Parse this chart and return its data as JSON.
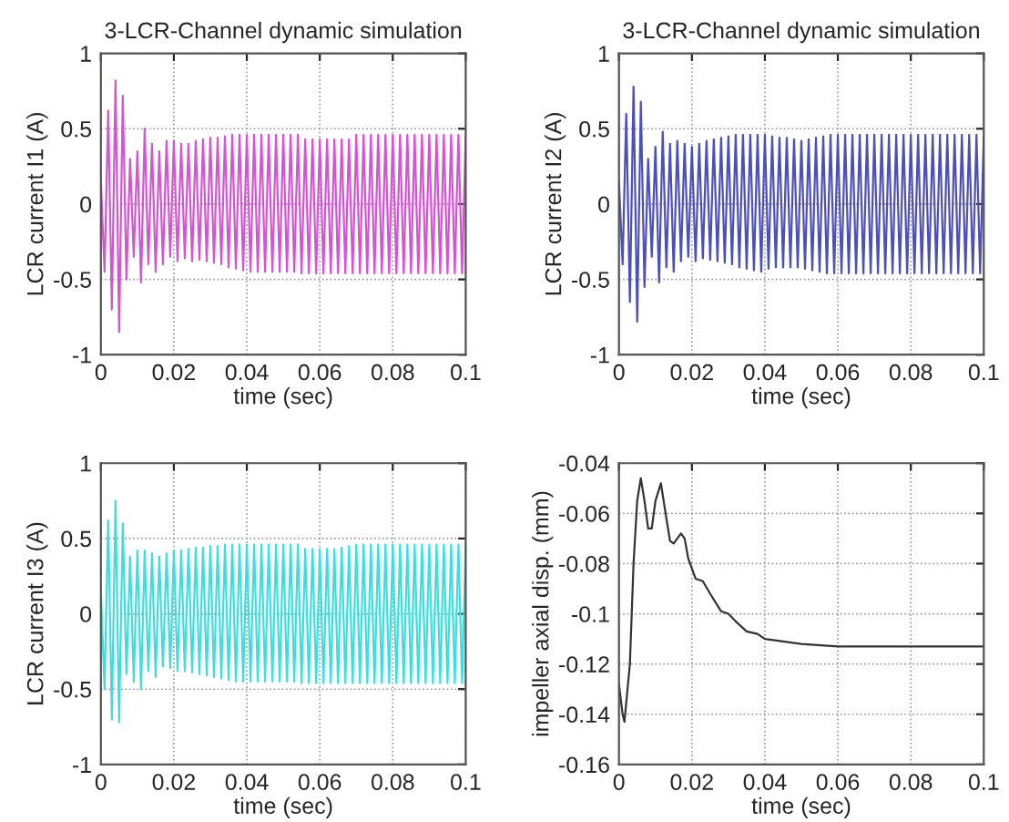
{
  "chart_data": [
    {
      "type": "line",
      "title": "3-LCR-Channel dynamic simulation",
      "xlabel": "time (sec)",
      "ylabel": "LCR current I1 (A)",
      "xlim": [
        0,
        0.1
      ],
      "ylim": [
        -1,
        1
      ],
      "xticks": [
        0,
        0.02,
        0.04,
        0.06,
        0.08,
        0.1
      ],
      "yticks": [
        -1,
        -0.5,
        0,
        0.5,
        1
      ],
      "grid": true,
      "x": [
        0,
        0.001,
        0.002,
        0.003,
        0.004,
        0.005,
        0.006,
        0.007,
        0.008,
        0.009,
        0.01,
        0.011,
        0.012,
        0.013,
        0.014,
        0.015,
        0.016,
        0.017,
        0.018,
        0.019,
        0.02,
        0.021,
        0.022,
        0.023,
        0.024,
        0.025,
        0.026,
        0.027,
        0.028,
        0.029,
        0.03,
        0.031,
        0.032,
        0.033,
        0.034,
        0.035,
        0.036,
        0.037,
        0.038,
        0.039,
        0.04,
        0.041,
        0.042,
        0.043,
        0.044,
        0.045,
        0.046,
        0.047,
        0.048,
        0.049,
        0.05,
        0.051,
        0.052,
        0.053,
        0.054,
        0.055,
        0.056,
        0.057,
        0.058,
        0.059,
        0.06,
        0.061,
        0.062,
        0.063,
        0.064,
        0.065,
        0.066,
        0.067,
        0.068,
        0.069,
        0.07,
        0.071,
        0.072,
        0.073,
        0.074,
        0.075,
        0.076,
        0.077,
        0.078,
        0.079,
        0.08,
        0.081,
        0.082,
        0.083,
        0.084,
        0.085,
        0.086,
        0.087,
        0.088,
        0.089,
        0.09,
        0.091,
        0.092,
        0.093,
        0.094,
        0.095,
        0.096,
        0.097,
        0.098,
        0.099,
        0.1
      ],
      "series": [
        {
          "color": "#d455d4",
          "values": [
            0.15,
            -0.45,
            0.62,
            -0.7,
            0.82,
            -0.85,
            0.72,
            -0.5,
            0.3,
            -0.35,
            0.35,
            -0.52,
            0.5,
            -0.4,
            0.4,
            -0.45,
            0.35,
            -0.4,
            0.42,
            -0.35,
            0.42,
            -0.38,
            0.4,
            -0.36,
            0.4,
            -0.38,
            0.42,
            -0.37,
            0.43,
            -0.38,
            0.44,
            -0.39,
            0.44,
            -0.4,
            0.45,
            -0.42,
            0.46,
            -0.43,
            0.46,
            -0.44,
            0.46,
            -0.45,
            0.46,
            -0.45,
            0.46,
            -0.45,
            0.46,
            -0.45,
            0.46,
            -0.45,
            0.46,
            -0.45,
            0.46,
            -0.45,
            0.46,
            -0.46,
            0.43,
            -0.46,
            0.43,
            -0.46,
            0.43,
            -0.46,
            0.43,
            -0.46,
            0.43,
            -0.46,
            0.43,
            -0.46,
            0.43,
            -0.46,
            0.46,
            -0.46,
            0.46,
            -0.46,
            0.46,
            -0.46,
            0.46,
            -0.46,
            0.46,
            -0.46,
            0.46,
            -0.46,
            0.46,
            -0.46,
            0.46,
            -0.46,
            0.46,
            -0.46,
            0.46,
            -0.46,
            0.46,
            -0.46,
            0.46,
            -0.46,
            0.46,
            -0.46,
            0.46,
            -0.46,
            0.46,
            -0.46,
            0.45
          ]
        }
      ]
    },
    {
      "type": "line",
      "title": "3-LCR-Channel dynamic simulation",
      "xlabel": "time (sec)",
      "ylabel": "LCR current I2 (A)",
      "xlim": [
        0,
        0.1
      ],
      "ylim": [
        -1,
        1
      ],
      "xticks": [
        0,
        0.02,
        0.04,
        0.06,
        0.08,
        0.1
      ],
      "yticks": [
        -1,
        -0.5,
        0,
        0.5,
        1
      ],
      "grid": true,
      "x": [
        0,
        0.001,
        0.002,
        0.003,
        0.004,
        0.005,
        0.006,
        0.007,
        0.008,
        0.009,
        0.01,
        0.011,
        0.012,
        0.013,
        0.014,
        0.015,
        0.016,
        0.017,
        0.018,
        0.019,
        0.02,
        0.021,
        0.022,
        0.023,
        0.024,
        0.025,
        0.026,
        0.027,
        0.028,
        0.029,
        0.03,
        0.031,
        0.032,
        0.033,
        0.034,
        0.035,
        0.036,
        0.037,
        0.038,
        0.039,
        0.04,
        0.041,
        0.042,
        0.043,
        0.044,
        0.045,
        0.046,
        0.047,
        0.048,
        0.049,
        0.05,
        0.051,
        0.052,
        0.053,
        0.054,
        0.055,
        0.056,
        0.057,
        0.058,
        0.059,
        0.06,
        0.061,
        0.062,
        0.063,
        0.064,
        0.065,
        0.066,
        0.067,
        0.068,
        0.069,
        0.07,
        0.071,
        0.072,
        0.073,
        0.074,
        0.075,
        0.076,
        0.077,
        0.078,
        0.079,
        0.08,
        0.081,
        0.082,
        0.083,
        0.084,
        0.085,
        0.086,
        0.087,
        0.088,
        0.089,
        0.09,
        0.091,
        0.092,
        0.093,
        0.094,
        0.095,
        0.096,
        0.097,
        0.098,
        0.099,
        0.1
      ],
      "series": [
        {
          "color": "#4f4fb8",
          "values": [
            0.15,
            -0.4,
            0.6,
            -0.65,
            0.78,
            -0.78,
            0.68,
            -0.55,
            0.3,
            -0.35,
            0.38,
            -0.52,
            0.48,
            -0.42,
            0.4,
            -0.45,
            0.42,
            -0.38,
            0.4,
            -0.35,
            0.38,
            -0.38,
            0.4,
            -0.36,
            0.42,
            -0.37,
            0.43,
            -0.38,
            0.44,
            -0.39,
            0.45,
            -0.4,
            0.46,
            -0.42,
            0.46,
            -0.43,
            0.46,
            -0.44,
            0.46,
            -0.45,
            0.46,
            -0.43,
            0.45,
            -0.42,
            0.44,
            -0.42,
            0.44,
            -0.42,
            0.43,
            -0.42,
            0.42,
            -0.43,
            0.43,
            -0.44,
            0.44,
            -0.45,
            0.45,
            -0.46,
            0.46,
            -0.46,
            0.46,
            -0.46,
            0.46,
            -0.46,
            0.46,
            -0.46,
            0.46,
            -0.46,
            0.46,
            -0.46,
            0.46,
            -0.46,
            0.46,
            -0.46,
            0.46,
            -0.46,
            0.46,
            -0.46,
            0.46,
            -0.46,
            0.46,
            -0.46,
            0.46,
            -0.46,
            0.46,
            -0.46,
            0.46,
            -0.46,
            0.46,
            -0.46,
            0.46,
            -0.46,
            0.46,
            -0.46,
            0.46,
            -0.46,
            0.46,
            -0.46,
            0.46,
            -0.46,
            0.45
          ]
        }
      ]
    },
    {
      "type": "line",
      "xlabel": "time (sec)",
      "ylabel": "LCR current I3 (A)",
      "xlim": [
        0,
        0.1
      ],
      "ylim": [
        -1,
        1
      ],
      "xticks": [
        0,
        0.02,
        0.04,
        0.06,
        0.08,
        0.1
      ],
      "yticks": [
        -1,
        -0.5,
        0,
        0.5,
        1
      ],
      "grid": true,
      "x": [
        0,
        0.001,
        0.002,
        0.003,
        0.004,
        0.005,
        0.006,
        0.007,
        0.008,
        0.009,
        0.01,
        0.011,
        0.012,
        0.013,
        0.014,
        0.015,
        0.016,
        0.017,
        0.018,
        0.019,
        0.02,
        0.021,
        0.022,
        0.023,
        0.024,
        0.025,
        0.026,
        0.027,
        0.028,
        0.029,
        0.03,
        0.031,
        0.032,
        0.033,
        0.034,
        0.035,
        0.036,
        0.037,
        0.038,
        0.039,
        0.04,
        0.041,
        0.042,
        0.043,
        0.044,
        0.045,
        0.046,
        0.047,
        0.048,
        0.049,
        0.05,
        0.051,
        0.052,
        0.053,
        0.054,
        0.055,
        0.056,
        0.057,
        0.058,
        0.059,
        0.06,
        0.061,
        0.062,
        0.063,
        0.064,
        0.065,
        0.066,
        0.067,
        0.068,
        0.069,
        0.07,
        0.071,
        0.072,
        0.073,
        0.074,
        0.075,
        0.076,
        0.077,
        0.078,
        0.079,
        0.08,
        0.081,
        0.082,
        0.083,
        0.084,
        0.085,
        0.086,
        0.087,
        0.088,
        0.089,
        0.09,
        0.091,
        0.092,
        0.093,
        0.094,
        0.095,
        0.096,
        0.097,
        0.098,
        0.099,
        0.1
      ],
      "series": [
        {
          "color": "#3fdede",
          "values": [
            0.15,
            -0.5,
            0.62,
            -0.7,
            0.75,
            -0.72,
            0.6,
            -0.4,
            0.38,
            -0.45,
            0.42,
            -0.5,
            0.42,
            -0.38,
            0.4,
            -0.42,
            0.38,
            -0.35,
            0.4,
            -0.36,
            0.42,
            -0.38,
            0.42,
            -0.38,
            0.43,
            -0.39,
            0.44,
            -0.4,
            0.44,
            -0.41,
            0.45,
            -0.42,
            0.45,
            -0.43,
            0.46,
            -0.44,
            0.46,
            -0.45,
            0.46,
            -0.45,
            0.46,
            -0.45,
            0.46,
            -0.45,
            0.46,
            -0.45,
            0.46,
            -0.45,
            0.46,
            -0.45,
            0.46,
            -0.45,
            0.46,
            -0.45,
            0.46,
            -0.46,
            0.43,
            -0.46,
            0.43,
            -0.46,
            0.43,
            -0.46,
            0.43,
            -0.46,
            0.43,
            -0.46,
            0.44,
            -0.46,
            0.45,
            -0.46,
            0.46,
            -0.46,
            0.46,
            -0.46,
            0.46,
            -0.46,
            0.46,
            -0.46,
            0.46,
            -0.46,
            0.46,
            -0.46,
            0.46,
            -0.46,
            0.46,
            -0.46,
            0.46,
            -0.46,
            0.46,
            -0.46,
            0.46,
            -0.46,
            0.46,
            -0.46,
            0.46,
            -0.46,
            0.46,
            -0.46,
            0.46,
            -0.46,
            0.45
          ]
        }
      ]
    },
    {
      "type": "line",
      "xlabel": "time (sec)",
      "ylabel": "impeller axial disp. (mm)",
      "xlim": [
        0,
        0.1
      ],
      "ylim": [
        -0.16,
        -0.04
      ],
      "xticks": [
        0,
        0.02,
        0.04,
        0.06,
        0.08,
        0.1
      ],
      "yticks": [
        -0.16,
        -0.14,
        -0.12,
        -0.1,
        -0.08,
        -0.06,
        -0.04
      ],
      "grid": true,
      "x": [
        0,
        0.001,
        0.0015,
        0.003,
        0.004,
        0.005,
        0.006,
        0.007,
        0.008,
        0.009,
        0.01,
        0.0115,
        0.013,
        0.014,
        0.015,
        0.017,
        0.018,
        0.019,
        0.021,
        0.023,
        0.025,
        0.028,
        0.03,
        0.032,
        0.035,
        0.038,
        0.04,
        0.045,
        0.05,
        0.06,
        0.07,
        0.08,
        0.09,
        0.1
      ],
      "series": [
        {
          "color": "#333333",
          "values": [
            -0.128,
            -0.14,
            -0.143,
            -0.12,
            -0.08,
            -0.055,
            -0.046,
            -0.055,
            -0.066,
            -0.066,
            -0.055,
            -0.048,
            -0.062,
            -0.071,
            -0.072,
            -0.068,
            -0.07,
            -0.078,
            -0.086,
            -0.087,
            -0.092,
            -0.099,
            -0.1,
            -0.103,
            -0.107,
            -0.108,
            -0.11,
            -0.111,
            -0.112,
            -0.113,
            -0.113,
            -0.113,
            -0.113,
            -0.113
          ]
        }
      ]
    }
  ]
}
